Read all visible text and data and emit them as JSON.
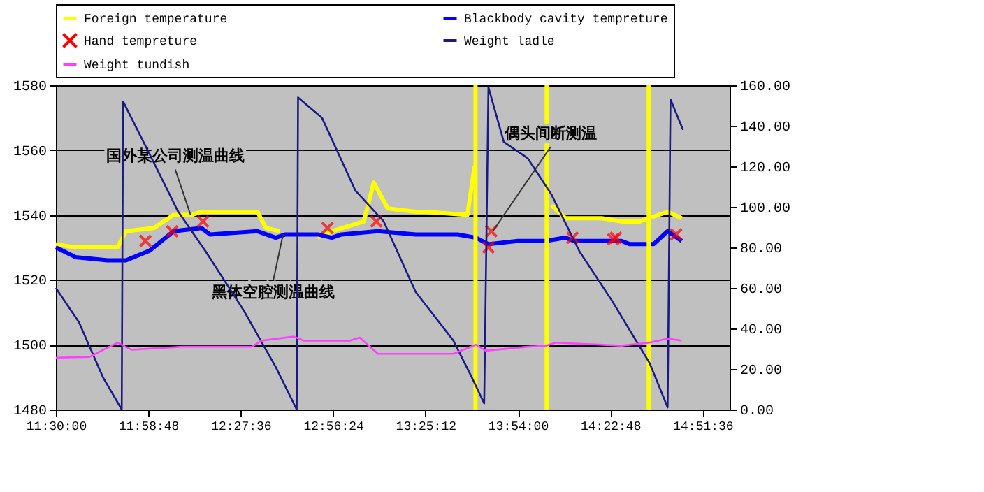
{
  "chart_data": {
    "type": "line",
    "xlim": [
      11.5,
      15.0
    ],
    "xticks": [
      {
        "value": 11.5,
        "label": "11:30:00"
      },
      {
        "value": 11.98,
        "label": "11:58:48"
      },
      {
        "value": 12.46,
        "label": "12:27:36"
      },
      {
        "value": 12.94,
        "label": "12:56:24"
      },
      {
        "value": 13.42,
        "label": "13:25:12"
      },
      {
        "value": 13.9,
        "label": "13:54:00"
      },
      {
        "value": 14.38,
        "label": "14:22:48"
      },
      {
        "value": 14.86,
        "label": "14:51:36"
      }
    ],
    "ylim": [
      1480,
      1580
    ],
    "yticks": [
      1480,
      1500,
      1520,
      1540,
      1560,
      1580
    ],
    "y2lim": [
      0,
      160
    ],
    "y2ticks": [
      {
        "value": 0,
        "label": "0.00"
      },
      {
        "value": 20,
        "label": "20.00"
      },
      {
        "value": 40,
        "label": "40.00"
      },
      {
        "value": 60,
        "label": "60.00"
      },
      {
        "value": 80,
        "label": "80.00"
      },
      {
        "value": 100,
        "label": "100.00"
      },
      {
        "value": 120,
        "label": "120.00"
      },
      {
        "value": 140,
        "label": "140.00"
      },
      {
        "value": 160,
        "label": "160.00"
      }
    ],
    "grid": "y",
    "legend": "top",
    "series": [
      {
        "name": "Foreign temperature",
        "color": "#ffff00",
        "x": [
          11.5,
          11.6,
          11.7,
          11.82,
          11.864,
          12.009,
          12.111,
          12.205,
          12.256,
          12.547,
          12.591,
          12.664,
          12.7,
          12.86,
          12.933,
          13.1,
          13.151,
          13.224,
          13.369,
          13.42,
          13.638,
          13.675,
          13.69,
          14.075,
          14.147,
          14.336,
          14.438,
          14.533,
          14.678,
          14.751
        ],
        "values": [
          1531,
          1530,
          1530,
          1530,
          1535,
          1536,
          1540,
          1540,
          1541,
          1541,
          1536,
          1535,
          null,
          1533,
          1535,
          1538,
          1550,
          1542,
          1541,
          1541,
          1540,
          1555,
          null,
          1543,
          1539,
          1539,
          1538,
          1538,
          1541,
          1539
        ]
      },
      {
        "name": "Blackbody cavity tempreture",
        "color": "#0000ff",
        "x": [
          11.5,
          11.602,
          11.769,
          11.864,
          11.987,
          12.111,
          12.256,
          12.3,
          12.547,
          12.642,
          12.693,
          12.86,
          12.933,
          12.984,
          13.173,
          13.369,
          13.587,
          13.682,
          13.747,
          13.9,
          14.045,
          14.147,
          14.191,
          14.438,
          14.482,
          14.605,
          14.678,
          14.751
        ],
        "values": [
          1530,
          1527,
          1526,
          1526,
          1529,
          1535,
          1536,
          1534,
          1535,
          1533,
          1534,
          1534,
          1533,
          1534,
          1535,
          1534,
          1534,
          1533,
          1531,
          1532,
          1532,
          1533,
          1532,
          1532,
          1531,
          1531,
          1535,
          1532
        ]
      },
      {
        "name": "Hand tempreture",
        "type": "scatter",
        "marker": "cross",
        "color": "#ff0000",
        "x": [
          11.965,
          12.104,
          12.264,
          12.911,
          13.165,
          13.747,
          13.762,
          14.184,
          14.395,
          14.409,
          14.722
        ],
        "values": [
          1532,
          1535,
          1538,
          1536,
          1538,
          1530,
          1535,
          1533,
          1532.5,
          1533,
          1534
        ]
      },
      {
        "name": "Weight ladle",
        "color": "#1a1a80",
        "axis": "y2",
        "x": [
          11.5,
          11.62,
          11.744,
          11.842,
          11.849,
          11.987,
          12.133,
          12.278,
          12.475,
          12.642,
          12.751,
          12.758,
          12.882,
          13.056,
          13.202,
          13.369,
          13.565,
          13.66,
          13.725,
          13.747,
          13.827,
          13.951,
          14.075,
          14.22,
          14.387,
          14.482,
          14.584,
          14.678,
          14.693,
          14.758
        ],
        "values": [
          60,
          43,
          16,
          0,
          152,
          126,
          98,
          78,
          49,
          21,
          0,
          154,
          144,
          108,
          93,
          58,
          34,
          16,
          3,
          159,
          132,
          124,
          106,
          78,
          54,
          39,
          23,
          1,
          153,
          138
        ]
      },
      {
        "name": "Weight tundish",
        "color": "#ff40ff",
        "axis": "y2",
        "x": [
          11.5,
          11.675,
          11.747,
          11.82,
          11.893,
          12.155,
          12.518,
          12.569,
          12.736,
          12.787,
          13.027,
          13.078,
          13.173,
          13.369,
          13.565,
          13.682,
          13.733,
          13.951,
          14.045,
          14.096,
          14.438,
          14.584,
          14.678,
          14.751
        ],
        "values": [
          25.6,
          26,
          29.5,
          33,
          29.5,
          31,
          31,
          34,
          36,
          34,
          34,
          35.5,
          27.5,
          27.5,
          27.5,
          32,
          29,
          31,
          31.5,
          33,
          31.5,
          33,
          35,
          34
        ]
      }
    ],
    "ref_lines": [
      {
        "axis": "x",
        "value": 13.68,
        "color": "#ffff00"
      },
      {
        "axis": "x",
        "value": 14.05,
        "color": "#ffff00"
      },
      {
        "axis": "x",
        "value": 14.58,
        "color": "#ffff00"
      }
    ],
    "annotations": [
      {
        "text": "国外某公司测温曲线",
        "x": 12.2,
        "y": 1540
      },
      {
        "text": "黑体空腔测温曲线",
        "x": 12.68,
        "y": 1534
      },
      {
        "text": "偶头间断测温",
        "x": 13.77,
        "y": 1535
      }
    ]
  }
}
